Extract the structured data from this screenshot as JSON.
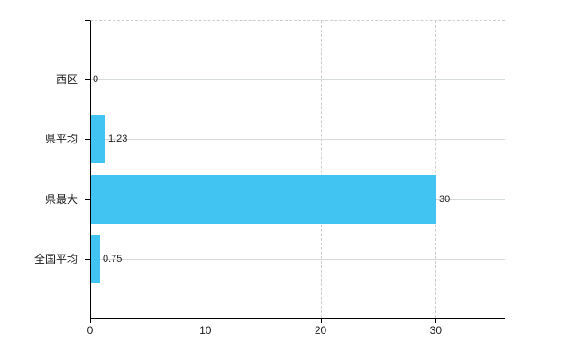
{
  "chart_data": {
    "type": "bar",
    "orientation": "horizontal",
    "title": "",
    "xlabel": "",
    "ylabel": "",
    "categories": [
      "西区",
      "県平均",
      "県最大",
      "全国平均"
    ],
    "values": [
      0,
      1.23,
      30,
      0.75
    ],
    "value_labels": [
      "0",
      "1.23",
      "30",
      "0.75"
    ],
    "x_tick_labels": [
      "0",
      "10",
      "20",
      "30"
    ],
    "x_tick_values": [
      0,
      10,
      20,
      30
    ],
    "xlim": [
      0,
      36
    ],
    "grid": true,
    "legend": false,
    "colors": {
      "bar": "#41c4f2",
      "axis": "#000000",
      "category_gridline": "#d5dbd5",
      "dashed_gridline": "#cccccc",
      "text": "#1a1a1a",
      "background": "#ffffff"
    }
  }
}
